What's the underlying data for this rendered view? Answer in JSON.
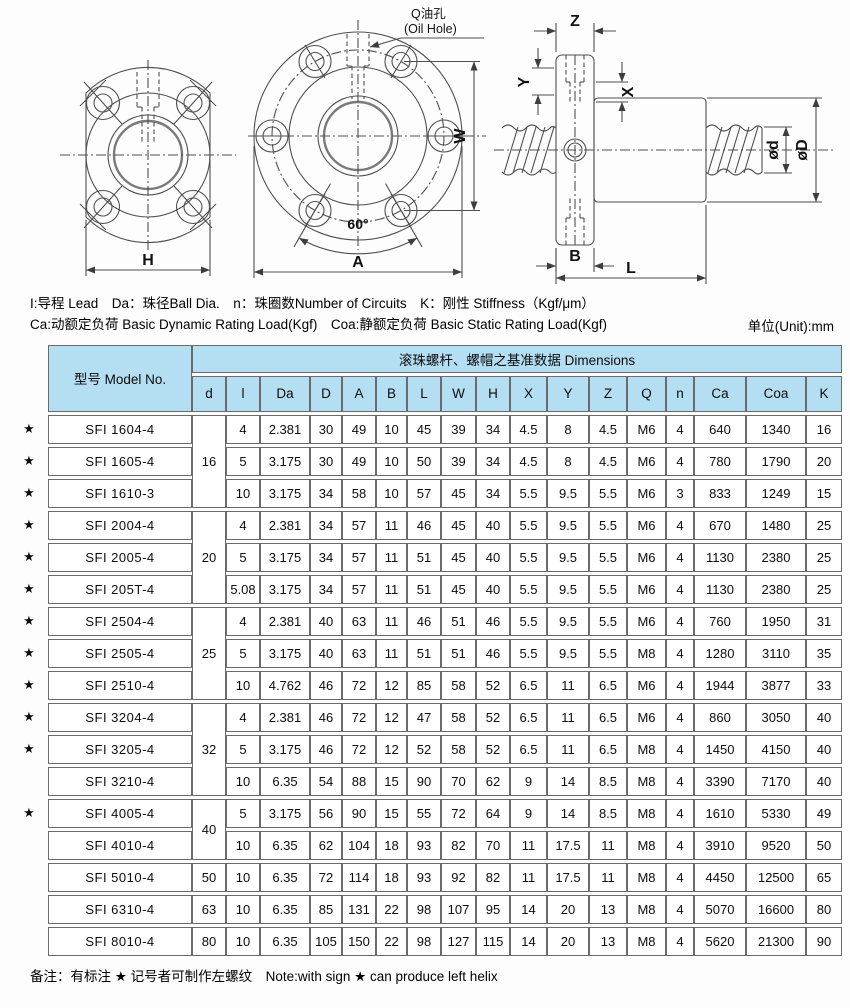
{
  "legend": {
    "line1": "I:导程 Lead　Da：珠径Ball Dia.　n：珠圈数Number of Circuits　K：刚性 Stiffness（Kgf/μm）",
    "line2": "Ca:动额定负荷 Basic Dynamic Rating Load(Kgf)　Coa:静额定负荷 Basic Static Rating Load(Kgf)",
    "unit": "单位(Unit):mm"
  },
  "drawings": {
    "labels": {
      "h": "H",
      "a": "A",
      "w": "W",
      "angle": "60°",
      "oil_cn": "Q油孔",
      "oil_en": "(Oil Hole)",
      "z": "Z",
      "y": "Y",
      "x": "X",
      "b": "B",
      "l": "L",
      "od": "ød",
      "oD": "øD"
    }
  },
  "table": {
    "model_header": "型号 Model No.",
    "dims_header": "滚珠螺杆、螺帽之基准数据 Dimensions",
    "columns": [
      "d",
      "l",
      "Da",
      "D",
      "A",
      "B",
      "L",
      "W",
      "H",
      "X",
      "Y",
      "Z",
      "Q",
      "n",
      "Ca",
      "Coa",
      "K"
    ],
    "rows": [
      {
        "star": "★",
        "model": "SFI 1604-4",
        "d": "16",
        "d_rows": 3,
        "values": [
          "4",
          "2.381",
          "30",
          "49",
          "10",
          "45",
          "39",
          "34",
          "4.5",
          "8",
          "4.5",
          "M6",
          "4",
          "640",
          "1340",
          "16"
        ]
      },
      {
        "star": "★",
        "model": "SFI 1605-4",
        "values": [
          "5",
          "3.175",
          "30",
          "49",
          "10",
          "50",
          "39",
          "34",
          "4.5",
          "8",
          "4.5",
          "M6",
          "4",
          "780",
          "1790",
          "20"
        ]
      },
      {
        "star": "★",
        "model": "SFI 1610-3",
        "values": [
          "10",
          "3.175",
          "34",
          "58",
          "10",
          "57",
          "45",
          "34",
          "5.5",
          "9.5",
          "5.5",
          "M6",
          "3",
          "833",
          "1249",
          "15"
        ]
      },
      {
        "star": "★",
        "model": "SFI 2004-4",
        "d": "20",
        "d_rows": 3,
        "values": [
          "4",
          "2.381",
          "34",
          "57",
          "11",
          "46",
          "45",
          "40",
          "5.5",
          "9.5",
          "5.5",
          "M6",
          "4",
          "670",
          "1480",
          "25"
        ]
      },
      {
        "star": "★",
        "model": "SFI 2005-4",
        "values": [
          "5",
          "3.175",
          "34",
          "57",
          "11",
          "51",
          "45",
          "40",
          "5.5",
          "9.5",
          "5.5",
          "M6",
          "4",
          "1130",
          "2380",
          "25"
        ]
      },
      {
        "star": "★",
        "model": "SFI 205T-4",
        "values": [
          "5.08",
          "3.175",
          "34",
          "57",
          "11",
          "51",
          "45",
          "40",
          "5.5",
          "9.5",
          "5.5",
          "M6",
          "4",
          "1130",
          "2380",
          "25"
        ]
      },
      {
        "star": "★",
        "model": "SFI 2504-4",
        "d": "25",
        "d_rows": 3,
        "values": [
          "4",
          "2.381",
          "40",
          "63",
          "11",
          "46",
          "51",
          "46",
          "5.5",
          "9.5",
          "5.5",
          "M6",
          "4",
          "760",
          "1950",
          "31"
        ]
      },
      {
        "star": "★",
        "model": "SFI 2505-4",
        "values": [
          "5",
          "3.175",
          "40",
          "63",
          "11",
          "51",
          "51",
          "46",
          "5.5",
          "9.5",
          "5.5",
          "M8",
          "4",
          "1280",
          "3110",
          "35"
        ]
      },
      {
        "star": "★",
        "model": "SFI 2510-4",
        "values": [
          "10",
          "4.762",
          "46",
          "72",
          "12",
          "85",
          "58",
          "52",
          "6.5",
          "11",
          "6.5",
          "M6",
          "4",
          "1944",
          "3877",
          "33"
        ]
      },
      {
        "star": "★",
        "model": "SFI 3204-4",
        "d": "32",
        "d_rows": 3,
        "values": [
          "4",
          "2.381",
          "46",
          "72",
          "12",
          "47",
          "58",
          "52",
          "6.5",
          "11",
          "6.5",
          "M6",
          "4",
          "860",
          "3050",
          "40"
        ]
      },
      {
        "star": "★",
        "model": "SFI 3205-4",
        "values": [
          "5",
          "3.175",
          "46",
          "72",
          "12",
          "52",
          "58",
          "52",
          "6.5",
          "11",
          "6.5",
          "M8",
          "4",
          "1450",
          "4150",
          "40"
        ]
      },
      {
        "star": "",
        "model": "SFI 3210-4",
        "values": [
          "10",
          "6.35",
          "54",
          "88",
          "15",
          "90",
          "70",
          "62",
          "9",
          "14",
          "8.5",
          "M8",
          "4",
          "3390",
          "7170",
          "40"
        ]
      },
      {
        "star": "★",
        "model": "SFI 4005-4",
        "d": "40",
        "d_rows": 2,
        "values": [
          "5",
          "3.175",
          "56",
          "90",
          "15",
          "55",
          "72",
          "64",
          "9",
          "14",
          "8.5",
          "M8",
          "4",
          "1610",
          "5330",
          "49"
        ]
      },
      {
        "star": "",
        "model": "SFI 4010-4",
        "values": [
          "10",
          "6.35",
          "62",
          "104",
          "18",
          "93",
          "82",
          "70",
          "11",
          "17.5",
          "11",
          "M8",
          "4",
          "3910",
          "9520",
          "50"
        ]
      },
      {
        "star": "",
        "model": "SFI 5010-4",
        "d": "50",
        "d_rows": 1,
        "values": [
          "10",
          "6.35",
          "72",
          "114",
          "18",
          "93",
          "92",
          "82",
          "11",
          "17.5",
          "11",
          "M8",
          "4",
          "4450",
          "12500",
          "65"
        ]
      },
      {
        "star": "",
        "model": "SFI 6310-4",
        "d": "63",
        "d_rows": 1,
        "values": [
          "10",
          "6.35",
          "85",
          "131",
          "22",
          "98",
          "107",
          "95",
          "14",
          "20",
          "13",
          "M8",
          "4",
          "5070",
          "16600",
          "80"
        ]
      },
      {
        "star": "",
        "model": "SFI 8010-4",
        "d": "80",
        "d_rows": 1,
        "values": [
          "10",
          "6.35",
          "105",
          "150",
          "22",
          "98",
          "127",
          "115",
          "14",
          "20",
          "13",
          "M8",
          "4",
          "5620",
          "21300",
          "90"
        ]
      }
    ]
  },
  "footer": {
    "note": "备注：有标注 ★ 记号者可制作左螺纹　Note:with sign ★ can produce left helix"
  }
}
